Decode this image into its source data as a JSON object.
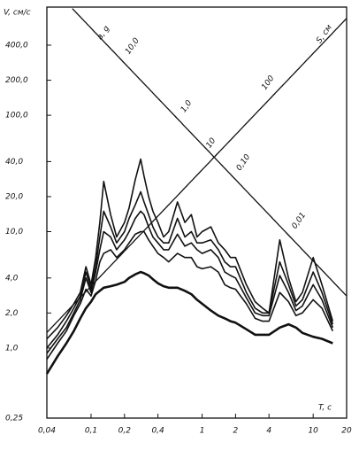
{
  "chart_data": {
    "type": "line",
    "log_x": true,
    "log_y": true,
    "grid": false,
    "y_label": "V, см/с",
    "x_label": "T, c",
    "xlim": [
      0.04,
      20
    ],
    "ylim": [
      0.25,
      850
    ],
    "xticks": [
      {
        "value": 0.04,
        "label": "0,04"
      },
      {
        "value": 0.1,
        "label": "0,1"
      },
      {
        "value": 0.2,
        "label": "0,2"
      },
      {
        "value": 0.4,
        "label": "0,4"
      },
      1,
      2,
      4,
      10,
      20
    ],
    "yticks": [
      {
        "value": 0.25,
        "label": "0,25"
      },
      {
        "value": 1,
        "label": "1,0"
      },
      {
        "value": 2,
        "label": "2,0"
      },
      {
        "value": 4,
        "label": "4,0"
      },
      {
        "value": 10,
        "label": "10,0"
      },
      {
        "value": 20,
        "label": "20,0"
      },
      {
        "value": 40,
        "label": "40,0"
      },
      {
        "value": 100,
        "label": "100,0"
      },
      {
        "value": 200,
        "label": "200,0"
      },
      {
        "value": 400,
        "label": "400,0"
      }
    ],
    "acceleration_axis": {
      "label": "a, g",
      "ticks": [
        {
          "value": 10,
          "label": "10,0"
        },
        {
          "value": 1,
          "label": "1,0"
        },
        {
          "value": 0.1,
          "label": "0,10"
        },
        {
          "value": 0.01,
          "label": "0,01"
        }
      ]
    },
    "displacement_axis": {
      "label": "S, cм",
      "ticks": [
        100,
        10
      ]
    },
    "x": [
      0.04,
      0.05,
      0.06,
      0.07,
      0.08,
      0.09,
      0.1,
      0.11,
      0.12,
      0.13,
      0.15,
      0.17,
      0.2,
      0.22,
      0.25,
      0.28,
      0.3,
      0.33,
      0.36,
      0.4,
      0.45,
      0.5,
      0.6,
      0.7,
      0.8,
      0.9,
      1,
      1.2,
      1.4,
      1.6,
      1.8,
      2,
      2.5,
      3,
      3.5,
      4,
      5,
      6,
      7,
      8,
      10,
      12,
      15
    ],
    "series": [
      {
        "color": "#111111",
        "values": [
          1.2,
          1.5,
          1.9,
          2.4,
          3.0,
          5.0,
          3.5,
          6.0,
          12,
          27,
          14,
          9,
          12,
          16,
          28,
          42,
          30,
          20,
          15,
          12,
          9,
          10,
          18,
          12,
          14,
          9,
          10,
          11,
          8,
          7,
          6,
          6,
          3.5,
          2.5,
          2.2,
          2.0,
          8.5,
          4.0,
          2.5,
          3.0,
          6.0,
          3.5,
          1.7
        ]
      },
      {
        "color": "#111111",
        "values": [
          1.0,
          1.3,
          1.7,
          2.2,
          2.8,
          4.5,
          3.2,
          5.0,
          9,
          15,
          11,
          8,
          10,
          13,
          17,
          22,
          18,
          14,
          11,
          9,
          8,
          8,
          13,
          9,
          10,
          8,
          8,
          8.5,
          7,
          5.5,
          5,
          5,
          3,
          2.2,
          2.0,
          2.0,
          5.5,
          3.5,
          2.3,
          2.6,
          4.5,
          3.0,
          1.6
        ]
      },
      {
        "color": "#111111",
        "values": [
          0.9,
          1.2,
          1.5,
          2.0,
          2.6,
          4.0,
          3.0,
          4.5,
          7,
          10,
          9,
          7,
          8.5,
          10,
          13,
          15,
          14,
          11,
          9,
          8,
          7,
          7,
          9.5,
          7.5,
          8,
          7,
          6.5,
          7,
          6,
          4.5,
          4.2,
          4,
          2.7,
          2.0,
          1.9,
          1.9,
          4.2,
          3.0,
          2.1,
          2.3,
          3.5,
          2.6,
          1.5
        ]
      },
      {
        "color": "#111111",
        "values": [
          0.8,
          1.1,
          1.4,
          1.9,
          2.4,
          3.2,
          2.8,
          3.8,
          5.5,
          6.5,
          7,
          6,
          7,
          8,
          9.5,
          10,
          10,
          8.5,
          7.5,
          6.5,
          6,
          5.5,
          6.5,
          6,
          6,
          5,
          4.8,
          5,
          4.5,
          3.5,
          3.3,
          3.2,
          2.4,
          1.8,
          1.7,
          1.7,
          3.0,
          2.5,
          1.9,
          2.0,
          2.6,
          2.2,
          1.4
        ]
      },
      {
        "color": "#111111",
        "values": [
          0.6,
          0.85,
          1.1,
          1.4,
          1.8,
          2.2,
          2.5,
          2.9,
          3.1,
          3.3,
          3.4,
          3.5,
          3.7,
          4.0,
          4.3,
          4.5,
          4.4,
          4.2,
          3.9,
          3.6,
          3.4,
          3.3,
          3.3,
          3.1,
          2.9,
          2.6,
          2.4,
          2.1,
          1.9,
          1.8,
          1.7,
          1.65,
          1.45,
          1.3,
          1.3,
          1.3,
          1.5,
          1.6,
          1.5,
          1.35,
          1.25,
          1.2,
          1.1
        ]
      }
    ]
  }
}
